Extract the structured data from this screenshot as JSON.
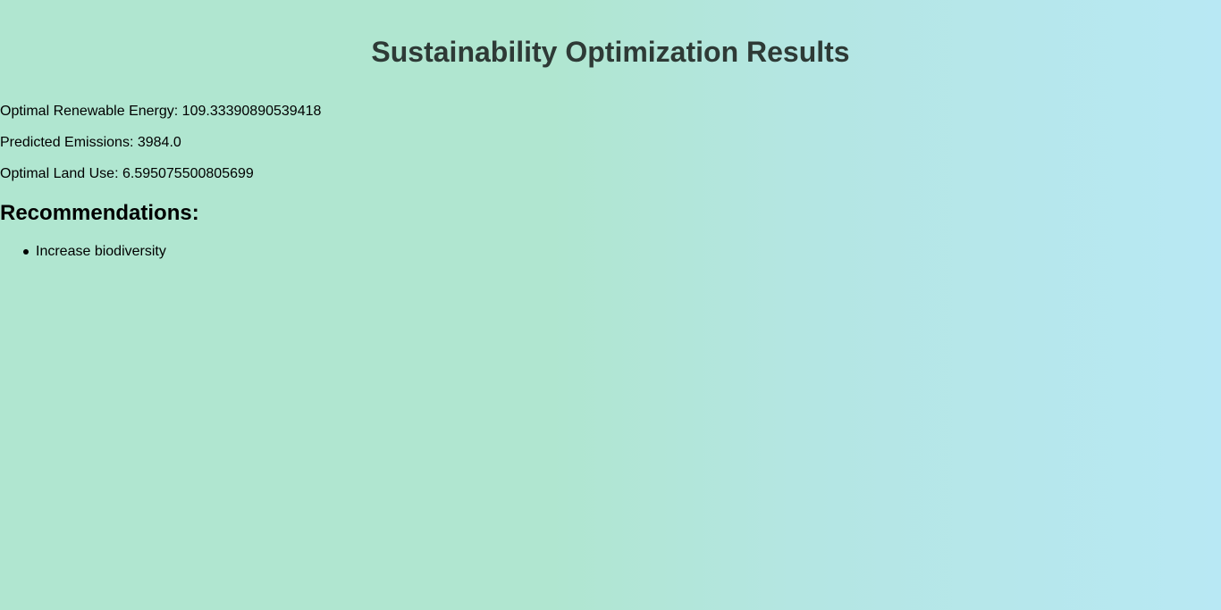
{
  "page": {
    "title": "Sustainability Optimization Results"
  },
  "results": [
    {
      "label": "Optimal Renewable Energy:",
      "value": "109.33390890539418"
    },
    {
      "label": "Predicted Emissions:",
      "value": "3984.0"
    },
    {
      "label": "Optimal Land Use:",
      "value": "6.595075500805699"
    }
  ],
  "recommendations": {
    "heading": "Recommendations:",
    "items": [
      "Increase biodiversity"
    ]
  },
  "colors": {
    "background_left": "#b0e6d0",
    "background_right": "#b8e8f4",
    "title_text": "#2e3a36"
  }
}
